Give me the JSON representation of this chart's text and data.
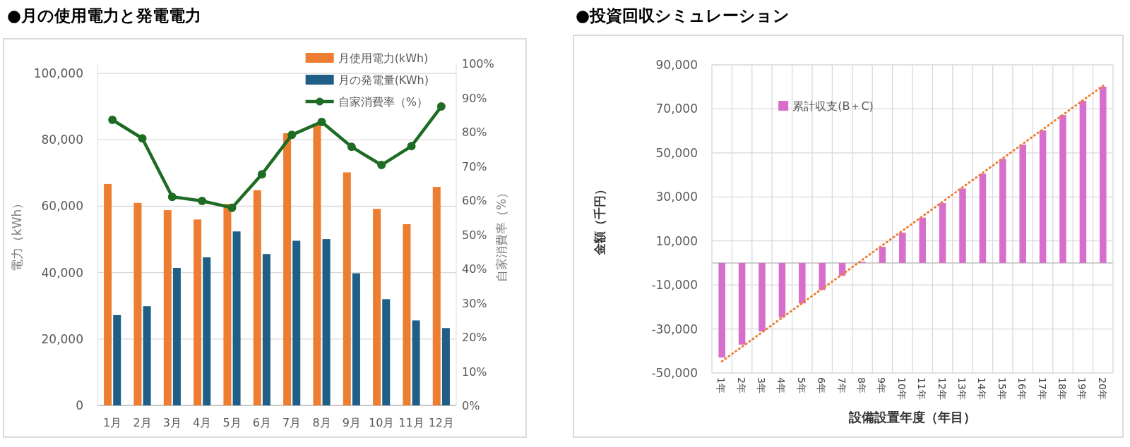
{
  "chart_data": [
    {
      "type": "bar",
      "title": "●月の使用電力と発電電力",
      "ylabel": "電力（kWh）",
      "y2label": "自家消費率（%）",
      "categories": [
        "1月",
        "2月",
        "3月",
        "4月",
        "5月",
        "6月",
        "7月",
        "8月",
        "9月",
        "10月",
        "11月",
        "12月"
      ],
      "series": [
        {
          "name": "月使用電力(kWh)",
          "color": "#ed7d31",
          "values": [
            66700,
            61000,
            58800,
            56000,
            60700,
            64800,
            82000,
            84500,
            70200,
            59200,
            54600,
            65800
          ]
        },
        {
          "name": "月の発電量(KWh)",
          "color": "#1f5f87",
          "values": [
            27200,
            29900,
            41400,
            44600,
            52400,
            45600,
            49600,
            50100,
            39800,
            32000,
            25600,
            23300
          ]
        },
        {
          "name": "自家消費率（%）",
          "color": "#1e6b24",
          "type": "line",
          "axis": "y2",
          "marker": "circle",
          "values": [
            83.5,
            78.1,
            61.0,
            59.8,
            57.8,
            67.6,
            79.1,
            82.9,
            75.6,
            70.3,
            75.8,
            87.4
          ]
        }
      ],
      "ylim": [
        0,
        103000
      ],
      "yticks": [
        0,
        {
          "value": 20000,
          "label": "20,000"
        },
        {
          "value": 40000,
          "label": "40,000"
        },
        {
          "value": 60000,
          "label": "60,000"
        },
        {
          "value": 80000,
          "label": "80,000"
        },
        {
          "value": 100000,
          "label": "100,000"
        }
      ],
      "y2lim": [
        0,
        100
      ],
      "y2ticks": [
        {
          "value": 0,
          "label": "0%"
        },
        {
          "value": 10,
          "label": "10%"
        },
        {
          "value": 20,
          "label": "20%"
        },
        {
          "value": 30,
          "label": "30%"
        },
        {
          "value": 40,
          "label": "40%"
        },
        {
          "value": 50,
          "label": "50%"
        },
        {
          "value": 60,
          "label": "60%"
        },
        {
          "value": 70,
          "label": "70%"
        },
        {
          "value": 80,
          "label": "80%"
        },
        {
          "value": 90,
          "label": "90%"
        },
        {
          "value": 100,
          "label": "100%"
        }
      ],
      "grid": "y",
      "legend": "top right"
    },
    {
      "type": "bar",
      "title": "●投資回収シミュレーション",
      "xlabel": "設備設置年度（年目）",
      "ylabel": "金額（千円）",
      "categories": [
        "1年",
        "2年",
        "3年",
        "4年",
        "5年",
        "6年",
        "7年",
        "8年",
        "9年",
        "10年",
        "11年",
        "12年",
        "13年",
        "14年",
        "15年",
        "16年",
        "17年",
        "18年",
        "19年",
        "20年"
      ],
      "series": [
        {
          "name": "累計収支(B＋C)",
          "color": "#d86ecc",
          "values": [
            -43000,
            -37100,
            -31100,
            -24800,
            -18400,
            -12300,
            -5800,
            500,
            7300,
            13800,
            20600,
            27200,
            33800,
            40500,
            47300,
            53700,
            60200,
            67200,
            73600,
            80100
          ]
        },
        {
          "color": "#ed7d31",
          "type": "line",
          "line_style": "dotted",
          "values": [
            -44700,
            -38100,
            -31500,
            -24900,
            -18300,
            -11700,
            -5200,
            1400,
            8000,
            14600,
            21200,
            27800,
            34400,
            40900,
            47500,
            54100,
            60700,
            67300,
            73900,
            80500
          ]
        }
      ],
      "ylim": [
        -50000,
        90000
      ],
      "yticks": [
        {
          "value": -50000,
          "label": "-50,000"
        },
        {
          "value": -30000,
          "label": "-30,000"
        },
        {
          "value": -10000,
          "label": "-10,000"
        },
        {
          "value": 10000,
          "label": "10,000"
        },
        {
          "value": 30000,
          "label": "30,000"
        },
        {
          "value": 50000,
          "label": "50,000"
        },
        {
          "value": 70000,
          "label": "70,000"
        },
        {
          "value": 90000,
          "label": "90,000"
        }
      ],
      "grid": true,
      "legend": "top left"
    }
  ]
}
